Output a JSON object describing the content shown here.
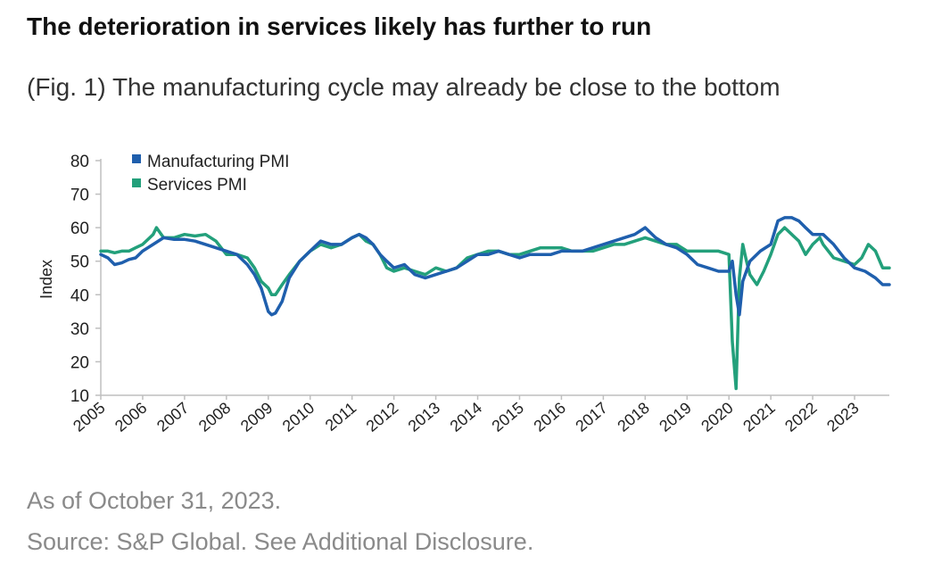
{
  "title": "The deterioration in services likely has further to run",
  "subtitle": "(Fig. 1) The manufacturing cycle may already be close to the bottom",
  "note": "As of October 31, 2023.",
  "source": "Source: S&P Global. See Additional Disclosure.",
  "colors": {
    "manufacturing": "#1f5fad",
    "services": "#23a07b",
    "axis": "#bfbfbf",
    "text": "#222222"
  },
  "chart_data": {
    "type": "line",
    "ylabel": "Index",
    "xlabel": "",
    "ylim": [
      10,
      80
    ],
    "yticks": [
      10,
      20,
      30,
      40,
      50,
      60,
      70,
      80
    ],
    "xlim": [
      2005.0,
      2023.83
    ],
    "xticks": [
      "2005",
      "2006",
      "2007",
      "2008",
      "2009",
      "2010",
      "2011",
      "2012",
      "2013",
      "2014",
      "2015",
      "2016",
      "2017",
      "2018",
      "2019",
      "2020",
      "2021",
      "2022",
      "2023"
    ],
    "grid": false,
    "legend": "top-left",
    "series": [
      {
        "name": "Manufacturing PMI",
        "color": "#1f5fad",
        "x": [
          2005.0,
          2005.17,
          2005.33,
          2005.5,
          2005.67,
          2005.83,
          2006.0,
          2006.25,
          2006.5,
          2006.75,
          2007.0,
          2007.25,
          2007.5,
          2007.75,
          2008.0,
          2008.25,
          2008.5,
          2008.67,
          2008.83,
          2009.0,
          2009.08,
          2009.17,
          2009.33,
          2009.5,
          2009.75,
          2010.0,
          2010.25,
          2010.5,
          2010.75,
          2011.0,
          2011.17,
          2011.33,
          2011.5,
          2011.67,
          2011.83,
          2012.0,
          2012.25,
          2012.5,
          2012.75,
          2013.0,
          2013.25,
          2013.5,
          2013.75,
          2014.0,
          2014.25,
          2014.5,
          2014.75,
          2015.0,
          2015.25,
          2015.5,
          2015.75,
          2016.0,
          2016.25,
          2016.5,
          2016.75,
          2017.0,
          2017.25,
          2017.5,
          2017.75,
          2018.0,
          2018.25,
          2018.5,
          2018.75,
          2019.0,
          2019.25,
          2019.5,
          2019.75,
          2020.0,
          2020.08,
          2020.17,
          2020.25,
          2020.33,
          2020.5,
          2020.75,
          2021.0,
          2021.17,
          2021.33,
          2021.5,
          2021.67,
          2021.83,
          2022.0,
          2022.25,
          2022.5,
          2022.75,
          2023.0,
          2023.25,
          2023.5,
          2023.67,
          2023.83
        ],
        "values": [
          52,
          51,
          49,
          49.5,
          50.5,
          51,
          53,
          55,
          57,
          56.5,
          56.5,
          56,
          55,
          54,
          53,
          52,
          49,
          46,
          42,
          35,
          34,
          34.5,
          38,
          45,
          50,
          53,
          56,
          55,
          55,
          57,
          58,
          57,
          55,
          52,
          50,
          48,
          49,
          46,
          45,
          46,
          47,
          48,
          50,
          52,
          52,
          53,
          52,
          51,
          52,
          52,
          52,
          53,
          53,
          53,
          54,
          55,
          56,
          57,
          58,
          60,
          57,
          55,
          54,
          52,
          49,
          48,
          47,
          47,
          50,
          40,
          34,
          44,
          50,
          53,
          55,
          62,
          63,
          63,
          62,
          60,
          58,
          58,
          55,
          51,
          48,
          47,
          45,
          43,
          43
        ]
      },
      {
        "name": "Services PMI",
        "color": "#23a07b",
        "x": [
          2005.0,
          2005.17,
          2005.33,
          2005.5,
          2005.67,
          2005.83,
          2006.0,
          2006.17,
          2006.25,
          2006.33,
          2006.5,
          2006.75,
          2007.0,
          2007.25,
          2007.5,
          2007.75,
          2008.0,
          2008.25,
          2008.5,
          2008.67,
          2008.83,
          2009.0,
          2009.08,
          2009.17,
          2009.33,
          2009.5,
          2009.75,
          2010.0,
          2010.25,
          2010.5,
          2010.75,
          2011.0,
          2011.17,
          2011.33,
          2011.5,
          2011.67,
          2011.83,
          2012.0,
          2012.25,
          2012.5,
          2012.75,
          2013.0,
          2013.25,
          2013.5,
          2013.75,
          2014.0,
          2014.25,
          2014.5,
          2014.75,
          2015.0,
          2015.25,
          2015.5,
          2015.75,
          2016.0,
          2016.25,
          2016.5,
          2016.75,
          2017.0,
          2017.25,
          2017.5,
          2017.75,
          2018.0,
          2018.25,
          2018.5,
          2018.75,
          2019.0,
          2019.25,
          2019.5,
          2019.75,
          2020.0,
          2020.08,
          2020.17,
          2020.25,
          2020.33,
          2020.42,
          2020.5,
          2020.67,
          2020.83,
          2021.0,
          2021.17,
          2021.33,
          2021.5,
          2021.67,
          2021.83,
          2022.0,
          2022.17,
          2022.25,
          2022.5,
          2022.75,
          2023.0,
          2023.17,
          2023.33,
          2023.5,
          2023.67,
          2023.83
        ],
        "values": [
          53,
          53,
          52.5,
          53,
          53,
          54,
          55,
          57,
          58,
          60,
          57,
          57,
          58,
          57.5,
          58,
          56,
          52,
          52,
          51,
          48,
          44,
          42,
          40,
          40,
          43,
          46,
          50,
          53,
          55,
          54,
          55,
          57,
          58,
          56,
          55,
          52,
          48,
          47,
          48,
          47,
          46,
          48,
          47,
          48,
          51,
          52,
          53,
          53,
          52,
          52,
          53,
          54,
          54,
          54,
          53,
          53,
          53,
          54,
          55,
          55,
          56,
          57,
          56,
          55,
          55,
          53,
          53,
          53,
          53,
          52,
          26,
          12,
          45,
          55,
          50,
          46,
          43,
          47,
          52,
          58,
          60,
          58,
          56,
          52,
          55,
          57,
          55,
          51,
          50,
          49,
          51,
          55,
          53,
          48,
          48
        ]
      }
    ]
  }
}
